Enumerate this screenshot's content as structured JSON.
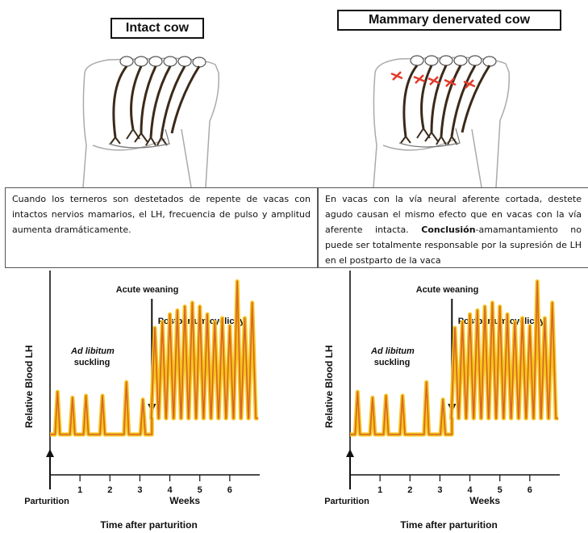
{
  "left": {
    "title": "Intact cow",
    "caption": "Cuando los terneros son destetados de repente de vacas con intactos nervios mamarios, el LH, frecuencia de pulso y amplitud aumenta dramáticamente."
  },
  "right": {
    "title": "Mammary denervated cow",
    "caption_pre": "En vacas con la vía neural aferente cortada, destete agudo causan el mismo efecto que en vacas con la vía aferente intacta. ",
    "caption_bold": "Conclusión",
    "caption_post": "-amamantamiento no puede ser totalmente responsable por la supresión de LH en el postparto de la vaca"
  },
  "colors": {
    "trace": "#d9642a",
    "trace_fill": "#f5c518",
    "nerve": "#3b2a1a",
    "cut": "#e23a2a"
  },
  "chart_data": [
    {
      "type": "line",
      "ylabel": "Relative Blood LH",
      "xlabel": "Time after parturition",
      "x_unit_label": "Weeks",
      "x_origin_label": "Parturition",
      "xticks": [
        1,
        2,
        3,
        4,
        5,
        6
      ],
      "xlim": [
        0,
        7
      ],
      "ylim": [
        0,
        1
      ],
      "annotations": {
        "ad_libitum_1": "Ad libitum",
        "ad_libitum_2": "suckling",
        "acute_weaning": "Acute weaning",
        "cyclicity": "Postpartum cyclicity"
      },
      "acute_weaning_week": 3.4,
      "pulses_before": [
        {
          "x": 0.25,
          "y": 0.22
        },
        {
          "x": 0.75,
          "y": 0.19
        },
        {
          "x": 1.2,
          "y": 0.2
        },
        {
          "x": 1.75,
          "y": 0.2
        },
        {
          "x": 2.55,
          "y": 0.27
        },
        {
          "x": 3.1,
          "y": 0.18
        }
      ],
      "pulses_after": [
        {
          "x": 3.5,
          "y": 0.55
        },
        {
          "x": 3.75,
          "y": 0.58
        },
        {
          "x": 4.0,
          "y": 0.62
        },
        {
          "x": 4.25,
          "y": 0.64
        },
        {
          "x": 4.5,
          "y": 0.66
        },
        {
          "x": 4.75,
          "y": 0.68
        },
        {
          "x": 5.0,
          "y": 0.66
        },
        {
          "x": 5.25,
          "y": 0.62
        },
        {
          "x": 5.5,
          "y": 0.58
        },
        {
          "x": 5.75,
          "y": 0.6
        },
        {
          "x": 6.0,
          "y": 0.56
        },
        {
          "x": 6.25,
          "y": 0.79
        },
        {
          "x": 6.5,
          "y": 0.6
        },
        {
          "x": 6.75,
          "y": 0.68
        }
      ]
    },
    {
      "type": "line",
      "ylabel": "Relative Blood LH",
      "xlabel": "Time after parturition",
      "x_unit_label": "Weeks",
      "x_origin_label": "Parturition",
      "xticks": [
        1,
        2,
        3,
        4,
        5,
        6
      ],
      "xlim": [
        0,
        7
      ],
      "ylim": [
        0,
        1
      ],
      "annotations": {
        "ad_libitum_1": "Ad libitum",
        "ad_libitum_2": "suckling",
        "acute_weaning": "Acute weaning",
        "cyclicity": "Postpartum cyclicity"
      },
      "acute_weaning_week": 3.4,
      "pulses_before": [
        {
          "x": 0.25,
          "y": 0.22
        },
        {
          "x": 0.75,
          "y": 0.19
        },
        {
          "x": 1.2,
          "y": 0.2
        },
        {
          "x": 1.75,
          "y": 0.2
        },
        {
          "x": 2.55,
          "y": 0.27
        },
        {
          "x": 3.1,
          "y": 0.18
        }
      ],
      "pulses_after": [
        {
          "x": 3.5,
          "y": 0.55
        },
        {
          "x": 3.75,
          "y": 0.58
        },
        {
          "x": 4.0,
          "y": 0.62
        },
        {
          "x": 4.25,
          "y": 0.64
        },
        {
          "x": 4.5,
          "y": 0.66
        },
        {
          "x": 4.75,
          "y": 0.68
        },
        {
          "x": 5.0,
          "y": 0.66
        },
        {
          "x": 5.25,
          "y": 0.62
        },
        {
          "x": 5.5,
          "y": 0.58
        },
        {
          "x": 5.75,
          "y": 0.6
        },
        {
          "x": 6.0,
          "y": 0.56
        },
        {
          "x": 6.25,
          "y": 0.79
        },
        {
          "x": 6.5,
          "y": 0.6
        },
        {
          "x": 6.75,
          "y": 0.68
        }
      ]
    }
  ]
}
